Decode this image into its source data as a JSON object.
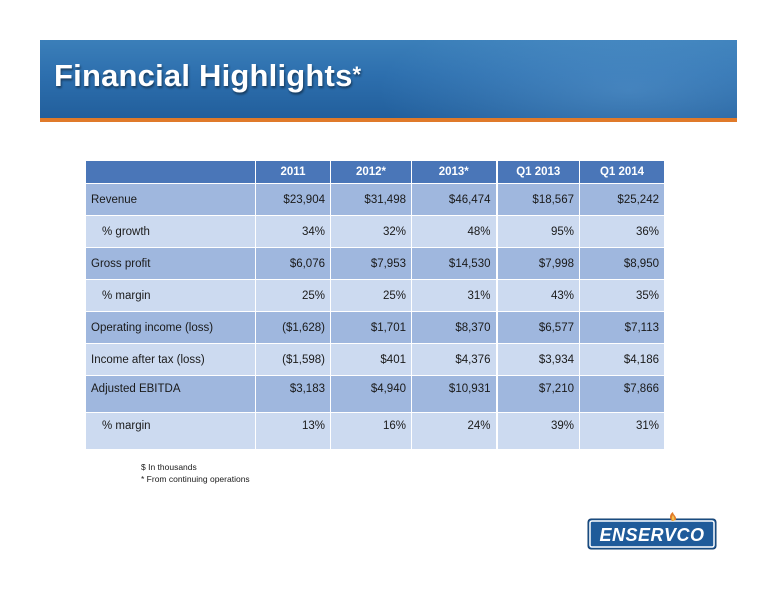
{
  "header": {
    "title": "Financial Highlights",
    "title_mark": "*",
    "banner_color": "#2d6fae",
    "stripe_color": "#e07a2a"
  },
  "table": {
    "columns": [
      "",
      "2011",
      "2012*",
      "2013*",
      "Q1 2013",
      "Q1 2014"
    ],
    "rows": [
      {
        "label": "Revenue",
        "values": [
          "$23,904",
          "$31,498",
          "$46,474",
          "$18,567",
          "$25,242"
        ]
      },
      {
        "label": "% growth",
        "values": [
          "34%",
          "32%",
          "48%",
          "95%",
          "36%"
        ]
      },
      {
        "label": "Gross profit",
        "values": [
          "$6,076",
          "$7,953",
          "$14,530",
          "$7,998",
          "$8,950"
        ]
      },
      {
        "label": "% margin",
        "values": [
          "25%",
          "25%",
          "31%",
          "43%",
          "35%"
        ]
      },
      {
        "label": "Operating income (loss)",
        "values": [
          "($1,628)",
          "$1,701",
          "$8,370",
          "$6,577",
          "$7,113"
        ]
      },
      {
        "label": "Income after tax (loss)",
        "values": [
          "($1,598)",
          "$401",
          "$4,376",
          "$3,934",
          "$4,186"
        ]
      },
      {
        "label": "Adjusted EBITDA",
        "values": [
          "$3,183",
          "$4,940",
          "$10,931",
          "$7,210",
          "$7,866"
        ]
      },
      {
        "label": "% margin",
        "values": [
          "13%",
          "16%",
          "24%",
          "39%",
          "31%"
        ]
      }
    ],
    "header_color": "#4a76b8",
    "row_dark_color": "#9fb7de",
    "row_light_color": "#ccdaf0"
  },
  "notes": {
    "line1": "$ In thousands",
    "line2": "* From continuing operations"
  },
  "logo": {
    "text": "ENSERVCO",
    "icon": "flame-icon"
  }
}
